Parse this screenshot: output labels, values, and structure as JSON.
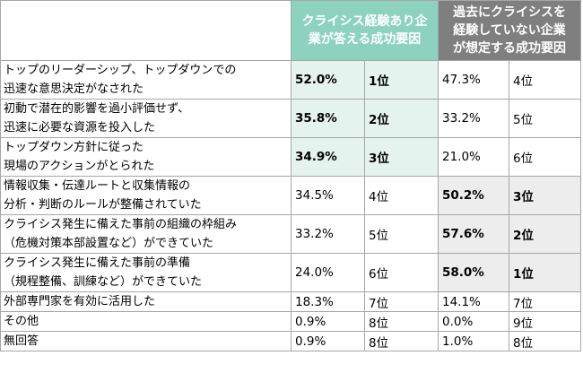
{
  "table": {
    "headers": {
      "experienced": "クライシス経験あり企業が答える成功要因",
      "experienced_lines": [
        "クライシス経験あり企",
        "業が答える成功要因"
      ],
      "not_experienced_lines": [
        "過去にクライシスを",
        "経験していない企業",
        "が想定する成功要因"
      ]
    },
    "rows": [
      {
        "item_lines": [
          "トップのリーダーシップ、トップダウンでの",
          "迅速な意思決定がなされた"
        ],
        "exp_pct": "52.0%",
        "exp_rank": "1位",
        "noexp_pct": "47.3%",
        "noexp_rank": "4位"
      },
      {
        "item_lines": [
          "初動で潜在的影響を過小評価せず、",
          "迅速に必要な資源を投入した"
        ],
        "exp_pct": "35.8%",
        "exp_rank": "2位",
        "noexp_pct": "33.2%",
        "noexp_rank": "5位"
      },
      {
        "item_lines": [
          "トップダウン方針に従った",
          "現場のアクションがとられた"
        ],
        "exp_pct": "34.9%",
        "exp_rank": "3位",
        "noexp_pct": "21.0%",
        "noexp_rank": "6位"
      },
      {
        "item_lines": [
          "情報収集・伝達ルートと収集情報の",
          "分析・判断のルールが整備されていた"
        ],
        "exp_pct": "34.5%",
        "exp_rank": "4位",
        "noexp_pct": "50.2%",
        "noexp_rank": "3位"
      },
      {
        "item_lines": [
          "クライシス発生に備えた事前の組織の枠組み",
          "（危機対策本部設置など）ができていた"
        ],
        "exp_pct": "33.2%",
        "exp_rank": "5位",
        "noexp_pct": "57.6%",
        "noexp_rank": "2位"
      },
      {
        "item_lines": [
          "クライシス発生に備えた事前の準備",
          "（規程整備、訓練など）ができていた"
        ],
        "exp_pct": "24.0%",
        "exp_rank": "6位",
        "noexp_pct": "58.0%",
        "noexp_rank": "1位"
      },
      {
        "item_lines": [
          "外部専門家を有効に活用した"
        ],
        "exp_pct": "18.3%",
        "exp_rank": "7位",
        "noexp_pct": "14.1%",
        "noexp_rank": "7位"
      },
      {
        "item_lines": [
          "その他"
        ],
        "exp_pct": "0.9%",
        "exp_rank": "8位",
        "noexp_pct": "0.0%",
        "noexp_rank": "9位"
      },
      {
        "item_lines": [
          "無回答"
        ],
        "exp_pct": "0.9%",
        "exp_rank": "8位",
        "noexp_pct": "1.0%",
        "noexp_rank": "8位"
      }
    ],
    "colors": {
      "experienced_header": "#8dd2bf",
      "experienced_highlight": "#e5f3ee",
      "not_experienced_header": "#7f7f7f",
      "not_experienced_highlight": "#ededed",
      "border": "#a6a6a6"
    }
  }
}
